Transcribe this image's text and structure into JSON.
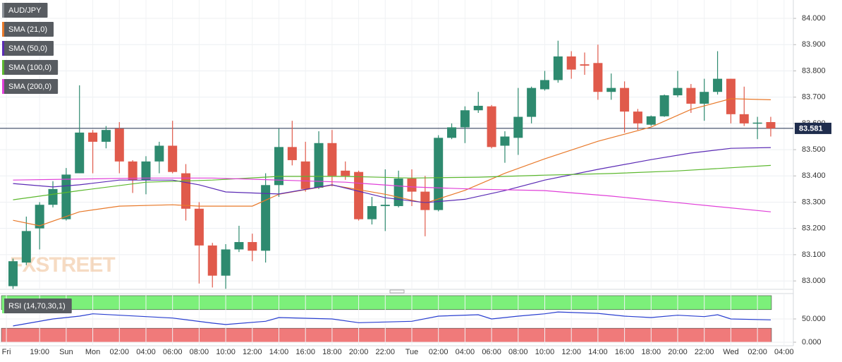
{
  "chart_data": [
    {
      "type": "candlestick",
      "legend_title": "AUD/JPY",
      "watermark": "FXSTREET",
      "x": [
        0,
        1,
        2,
        3,
        4,
        5,
        6,
        7,
        8,
        9,
        10,
        11,
        12,
        13,
        14,
        15,
        16,
        17,
        18,
        19,
        20,
        21,
        22,
        23,
        24,
        25,
        26,
        27,
        28,
        29,
        30,
        31,
        32,
        33,
        34,
        35,
        36,
        37,
        38,
        39,
        40,
        41,
        42,
        43,
        44,
        45,
        46,
        47,
        48,
        49,
        50,
        51,
        52,
        53,
        54,
        55,
        56,
        57
      ],
      "open": [
        82.98,
        83.07,
        83.2,
        83.29,
        83.235,
        83.41,
        83.565,
        83.53,
        83.58,
        83.455,
        83.385,
        83.455,
        83.515,
        83.41,
        83.275,
        83.135,
        83.02,
        83.12,
        83.148,
        83.115,
        83.365,
        83.51,
        83.455,
        83.355,
        83.525,
        83.42,
        83.415,
        83.235,
        83.285,
        83.285,
        83.39,
        83.34,
        83.27,
        83.545,
        83.585,
        83.65,
        83.665,
        83.515,
        83.545,
        83.625,
        83.73,
        83.765,
        83.855,
        83.825,
        83.83,
        83.72,
        83.735,
        83.645,
        83.595,
        83.627,
        83.707,
        83.735,
        83.675,
        83.72,
        83.77,
        83.635,
        83.602,
        83.605
      ],
      "high": [
        83.085,
        83.245,
        83.3,
        83.38,
        83.43,
        83.745,
        83.575,
        83.59,
        83.605,
        83.46,
        83.475,
        83.53,
        83.61,
        83.445,
        83.3,
        83.145,
        83.14,
        83.21,
        83.18,
        83.41,
        83.58,
        83.61,
        83.53,
        83.57,
        83.575,
        83.455,
        83.42,
        83.32,
        83.425,
        83.42,
        83.425,
        83.4,
        83.555,
        83.6,
        83.665,
        83.72,
        83.67,
        83.57,
        83.735,
        83.74,
        83.8,
        83.915,
        83.875,
        83.87,
        83.9,
        83.79,
        83.76,
        83.655,
        83.63,
        83.71,
        83.8,
        83.75,
        83.77,
        83.875,
        83.77,
        83.74,
        83.625,
        83.625
      ],
      "low": [
        82.97,
        83.06,
        83.12,
        83.28,
        83.23,
        83.41,
        83.41,
        83.505,
        83.41,
        83.335,
        83.33,
        83.41,
        83.41,
        83.23,
        82.99,
        82.975,
        82.97,
        83.11,
        83.075,
        83.07,
        83.32,
        83.44,
        83.34,
        83.35,
        83.36,
        83.385,
        83.23,
        83.215,
        83.19,
        83.28,
        83.285,
        83.17,
        83.265,
        83.54,
        83.525,
        83.64,
        83.505,
        83.45,
        83.48,
        83.6,
        83.725,
        83.755,
        83.77,
        83.785,
        83.69,
        83.69,
        83.565,
        83.575,
        83.59,
        83.625,
        83.7,
        83.64,
        83.61,
        83.71,
        83.6,
        83.59,
        83.54,
        83.55
      ],
      "close": [
        83.075,
        83.19,
        83.29,
        83.35,
        83.405,
        83.565,
        83.53,
        83.575,
        83.455,
        83.385,
        83.455,
        83.515,
        83.415,
        83.275,
        83.135,
        83.02,
        83.12,
        83.148,
        83.115,
        83.365,
        83.51,
        83.46,
        83.35,
        83.525,
        83.4,
        83.4,
        83.235,
        83.285,
        83.29,
        83.39,
        83.34,
        83.27,
        83.545,
        83.585,
        83.65,
        83.667,
        83.51,
        83.55,
        83.625,
        83.735,
        83.765,
        83.855,
        83.805,
        83.82,
        83.72,
        83.735,
        83.645,
        83.6,
        83.627,
        83.707,
        83.735,
        83.675,
        83.72,
        83.77,
        83.635,
        83.6,
        83.603,
        83.581
      ],
      "up_color": "#2e8a6f",
      "down_color": "#e05a4b",
      "series": [
        {
          "name": "SMA (21,0)",
          "color": "#e8792a",
          "x": [
            0,
            2,
            5,
            8,
            12,
            14,
            18,
            20,
            24,
            28,
            31,
            34,
            37,
            40,
            44,
            48,
            51,
            54,
            57
          ],
          "values": [
            83.231,
            83.21,
            83.263,
            83.285,
            83.29,
            83.285,
            83.285,
            83.33,
            83.365,
            83.33,
            83.296,
            83.345,
            83.41,
            83.465,
            83.532,
            83.586,
            83.653,
            83.694,
            83.69
          ]
        },
        {
          "name": "SMA (50,0)",
          "color": "#5b2bb5",
          "x": [
            0,
            3,
            5,
            8,
            12,
            14,
            16,
            20,
            24,
            28,
            31,
            34,
            37,
            40,
            44,
            48,
            51,
            54,
            57
          ],
          "values": [
            83.371,
            83.358,
            83.366,
            83.384,
            83.384,
            83.366,
            83.339,
            83.331,
            83.366,
            83.317,
            83.298,
            83.311,
            83.344,
            83.384,
            83.425,
            83.462,
            83.487,
            83.505,
            83.508
          ]
        },
        {
          "name": "SMA (100,0)",
          "color": "#5cb82e",
          "x": [
            0,
            5,
            10,
            15,
            20,
            25,
            30,
            35,
            40,
            45,
            50,
            57
          ],
          "values": [
            83.309,
            83.344,
            83.376,
            83.384,
            83.398,
            83.398,
            83.392,
            83.395,
            83.403,
            83.409,
            83.419,
            83.44
          ]
        },
        {
          "name": "SMA (200,0)",
          "color": "#e03fd8",
          "x": [
            0,
            10,
            15,
            20,
            25,
            30,
            35,
            40,
            45,
            50,
            57
          ],
          "values": [
            83.384,
            83.392,
            83.392,
            83.384,
            83.376,
            83.358,
            83.349,
            83.344,
            83.323,
            83.298,
            83.263
          ]
        }
      ],
      "last_price": {
        "value": 83.581,
        "label": "83.581"
      },
      "ylim": [
        82.968,
        84.07
      ],
      "yticks": [
        {
          "value": 83,
          "label": "83.000"
        },
        {
          "value": 83.1,
          "label": "83.100"
        },
        {
          "value": 83.2,
          "label": "83.200"
        },
        {
          "value": 83.3,
          "label": "83.300"
        },
        {
          "value": 83.4,
          "label": "83.400"
        },
        {
          "value": 83.5,
          "label": "83.500"
        },
        {
          "value": 83.6,
          "label": "83.600"
        },
        {
          "value": 83.7,
          "label": "83.700"
        },
        {
          "value": 83.8,
          "label": "83.800"
        },
        {
          "value": 83.9,
          "label": "83.900"
        },
        {
          "value": 84,
          "label": "84.000"
        }
      ],
      "xlim": [
        -0.98,
        58.7
      ],
      "xticks": [
        {
          "value": -0.5,
          "label": "Fri"
        },
        {
          "value": 2,
          "label": "19:00"
        },
        {
          "value": 4,
          "label": "Sun"
        },
        {
          "value": 6,
          "label": "Mon"
        },
        {
          "value": 8,
          "label": "02:00"
        },
        {
          "value": 10,
          "label": "04:00"
        },
        {
          "value": 12,
          "label": "06:00"
        },
        {
          "value": 14,
          "label": "08:00"
        },
        {
          "value": 16,
          "label": "10:00"
        },
        {
          "value": 18,
          "label": "12:00"
        },
        {
          "value": 20,
          "label": "14:00"
        },
        {
          "value": 22,
          "label": "16:00"
        },
        {
          "value": 24,
          "label": "18:00"
        },
        {
          "value": 26,
          "label": "20:00"
        },
        {
          "value": 28,
          "label": "22:00"
        },
        {
          "value": 30,
          "label": "Tue"
        },
        {
          "value": 32,
          "label": "02:00"
        },
        {
          "value": 34,
          "label": "04:00"
        },
        {
          "value": 36,
          "label": "06:00"
        },
        {
          "value": 38,
          "label": "08:00"
        },
        {
          "value": 40,
          "label": "10:00"
        },
        {
          "value": 42,
          "label": "12:00"
        },
        {
          "value": 44,
          "label": "14:00"
        },
        {
          "value": 46,
          "label": "16:00"
        },
        {
          "value": 48,
          "label": "18:00"
        },
        {
          "value": 50,
          "label": "20:00"
        },
        {
          "value": 52,
          "label": "22:00"
        },
        {
          "value": 54,
          "label": "Wed"
        },
        {
          "value": 56,
          "label": "02:00"
        },
        {
          "value": 58,
          "label": "04:00"
        }
      ],
      "grid": true
    },
    {
      "type": "line",
      "title": "RSI (14,70,30,1)",
      "series": [
        {
          "color": "#2a3fd0",
          "x": [
            0,
            3,
            5,
            6,
            8,
            12,
            15,
            16,
            19,
            20,
            24,
            26,
            30,
            32,
            35,
            36,
            38,
            40,
            41,
            44,
            46,
            48,
            50,
            52,
            53,
            54,
            57
          ],
          "values": [
            35,
            50,
            56,
            61,
            58,
            52,
            41,
            38,
            45,
            53,
            50,
            42,
            45,
            56,
            59,
            50,
            56,
            61,
            65,
            62,
            56,
            53,
            58,
            55,
            59,
            50,
            48
          ]
        }
      ],
      "upper_band": {
        "range": [
          70,
          100
        ],
        "color": "#7cf07a"
      },
      "lower_band": {
        "range": [
          0,
          30
        ],
        "color": "#f07a7a"
      },
      "ylim": [
        -7.6,
        104.5
      ],
      "yticks": [
        {
          "value": 50,
          "label": "50.000"
        },
        {
          "value": 0,
          "label": "0.000"
        }
      ],
      "xlim": [
        -0.98,
        58.7
      ],
      "grid": true
    }
  ]
}
